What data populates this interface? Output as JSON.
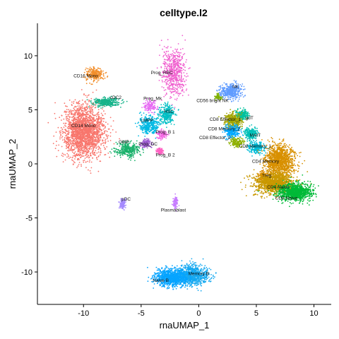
{
  "chart_data": {
    "type": "scatter",
    "title": "celltype.l2",
    "xlabel": "rnaUMAP_1",
    "ylabel": "rnaUMAP_2",
    "xlim": [
      -14,
      11.5
    ],
    "ylim": [
      -13,
      13
    ],
    "x_ticks": [
      -10,
      -5,
      0,
      5,
      10
    ],
    "y_ticks": [
      -10,
      -5,
      0,
      5,
      10
    ],
    "x_tick_labels": [
      "-10",
      "-5",
      "0",
      "5",
      "10"
    ],
    "y_tick_labels": [
      "-10",
      "-5",
      "0",
      "5",
      "10"
    ],
    "grid": false,
    "legend": "none",
    "clusters": [
      {
        "name": "CD16 Mono",
        "color": "#f28e2b",
        "label_pos": [
          -9.8,
          8.0
        ],
        "center": [
          -9.0,
          8.3
        ],
        "spread": [
          0.7,
          0.55
        ],
        "n": 250
      },
      {
        "name": "CD14 Mono",
        "color": "#f8766d",
        "label_pos": [
          -10.0,
          3.4
        ],
        "center": [
          -10.0,
          3.0
        ],
        "spread": [
          1.6,
          2.1
        ],
        "n": 2200
      },
      {
        "name": "cDC2",
        "color": "#15b38a",
        "label_pos": [
          -7.2,
          6.0
        ],
        "center": [
          -8.0,
          5.7
        ],
        "spread": [
          1.0,
          0.35
        ],
        "n": 350
      },
      {
        "name": "Prog_RBC",
        "color": "#f061cf",
        "label_pos": [
          -3.2,
          8.3
        ],
        "center": [
          -2.2,
          8.5
        ],
        "spread": [
          0.9,
          2.0
        ],
        "n": 600
      },
      {
        "name": "Prog_Mk",
        "color": "#e76bf3",
        "label_pos": [
          -4.0,
          5.9
        ],
        "center": [
          -4.2,
          5.3
        ],
        "spread": [
          0.5,
          0.5
        ],
        "n": 150
      },
      {
        "name": "HSC",
        "color": "#00bfc4",
        "label_pos": [
          -2.6,
          4.7
        ],
        "center": [
          -2.8,
          4.6
        ],
        "spread": [
          0.6,
          0.8
        ],
        "n": 300
      },
      {
        "name": "LMPP",
        "color": "#00b9e3",
        "label_pos": [
          -4.5,
          3.9
        ],
        "center": [
          -4.3,
          3.5
        ],
        "spread": [
          0.8,
          0.8
        ],
        "n": 350
      },
      {
        "name": "Prog_B 1",
        "color": "#f564e3",
        "label_pos": [
          -2.9,
          2.8
        ],
        "center": [
          -3.2,
          2.7
        ],
        "spread": [
          0.4,
          0.4
        ],
        "n": 120
      },
      {
        "name": "GMP",
        "color": "#19b16b",
        "label_pos": [
          -6.5,
          1.9
        ],
        "center": [
          -6.2,
          1.3
        ],
        "spread": [
          0.9,
          0.6
        ],
        "n": 350
      },
      {
        "name": "Prog_DC",
        "color": "#9b59d0",
        "label_pos": [
          -4.4,
          1.7
        ],
        "center": [
          -4.6,
          1.9
        ],
        "spread": [
          0.4,
          0.4
        ],
        "n": 120
      },
      {
        "name": "Prog_B 2",
        "color": "#ff61c3",
        "label_pos": [
          -2.9,
          0.7
        ],
        "center": [
          -3.4,
          1.2
        ],
        "spread": [
          0.3,
          0.3
        ],
        "n": 100
      },
      {
        "name": "pDC",
        "color": "#a58aff",
        "label_pos": [
          -6.3,
          -3.4
        ],
        "center": [
          -6.6,
          -3.7
        ],
        "spread": [
          0.25,
          0.4
        ],
        "n": 120
      },
      {
        "name": "Plasmablast",
        "color": "#c77cff",
        "label_pos": [
          -2.2,
          -4.4
        ],
        "center": [
          -2.0,
          -3.6
        ],
        "spread": [
          0.2,
          0.5
        ],
        "n": 90
      },
      {
        "name": "NK",
        "color": "#619cff",
        "label_pos": [
          3.2,
          7.0
        ],
        "center": [
          2.8,
          6.7
        ],
        "spread": [
          0.8,
          0.6
        ],
        "n": 450
      },
      {
        "name": "CD56 bright NK",
        "color": "#7cae00",
        "label_pos": [
          1.2,
          5.7
        ],
        "center": [
          1.7,
          6.2
        ],
        "spread": [
          0.3,
          0.3
        ],
        "n": 60
      },
      {
        "name": "gdT",
        "color": "#00c19f",
        "label_pos": [
          4.4,
          4.1
        ],
        "center": [
          3.8,
          4.5
        ],
        "spread": [
          0.5,
          0.4
        ],
        "n": 250
      },
      {
        "name": "CD8 Effector_1",
        "color": "#a3a500",
        "label_pos": [
          2.3,
          4.0
        ],
        "center": [
          3.0,
          4.0
        ],
        "spread": [
          0.7,
          0.7
        ],
        "n": 350
      },
      {
        "name": "CD8 Memory_2",
        "color": "#00a9ff",
        "label_pos": [
          2.2,
          3.1
        ],
        "center": [
          2.9,
          3.0
        ],
        "spread": [
          0.6,
          0.5
        ],
        "n": 250
      },
      {
        "name": "MAIT",
        "color": "#00c0b8",
        "label_pos": [
          4.9,
          2.5
        ],
        "center": [
          4.5,
          2.8
        ],
        "spread": [
          0.5,
          0.5
        ],
        "n": 250
      },
      {
        "name": "CD8 Effector_2",
        "color": "#8fb000",
        "label_pos": [
          1.4,
          2.3
        ],
        "center": [
          3.3,
          2.0
        ],
        "spread": [
          0.5,
          0.4
        ],
        "n": 150
      },
      {
        "name": "CD8 Memory_1",
        "color": "#00bcd8",
        "label_pos": [
          4.9,
          1.5
        ],
        "center": [
          5.0,
          1.5
        ],
        "spread": [
          0.6,
          0.5
        ],
        "n": 250
      },
      {
        "name": "CD4 Memory",
        "color": "#d89000",
        "label_pos": [
          5.8,
          0.1
        ],
        "center": [
          7.0,
          0.3
        ],
        "spread": [
          1.1,
          1.3
        ],
        "n": 1300
      },
      {
        "name": "Treg",
        "color": "#e38900",
        "label_pos": [
          5.9,
          -1.2
        ],
        "center": [
          5.6,
          -1.2
        ],
        "spread": [
          0.4,
          0.4
        ],
        "n": 100
      },
      {
        "name": "CD4 Naive",
        "color": "#c99800",
        "label_pos": [
          6.9,
          -2.3
        ],
        "center": [
          6.5,
          -1.8
        ],
        "spread": [
          1.5,
          0.8
        ],
        "n": 1300
      },
      {
        "name": "CD8 Naive",
        "color": "#00ba38",
        "label_pos": [
          7.6,
          -3.3
        ],
        "center": [
          8.4,
          -2.6
        ],
        "spread": [
          1.3,
          0.7
        ],
        "n": 1100
      },
      {
        "name": "Memory B",
        "color": "#17a9f0",
        "label_pos": [
          0.0,
          -10.3
        ],
        "center": [
          -0.6,
          -10.3
        ],
        "spread": [
          1.3,
          0.8
        ],
        "n": 900
      },
      {
        "name": "Naive B",
        "color": "#06a4ff",
        "label_pos": [
          -3.3,
          -10.9
        ],
        "center": [
          -2.4,
          -10.5
        ],
        "spread": [
          1.3,
          0.7
        ],
        "n": 900
      }
    ]
  }
}
